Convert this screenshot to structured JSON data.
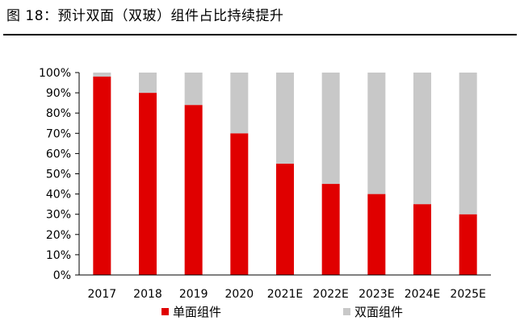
{
  "figure_title": "图 18：预计双面（双玻）组件占比持续提升",
  "chart_data": {
    "type": "bar",
    "stacked": true,
    "categories": [
      "2017",
      "2018",
      "2019",
      "2020",
      "2021E",
      "2022E",
      "2023E",
      "2024E",
      "2025E"
    ],
    "series": [
      {
        "name": "单面组件",
        "color": "#e00000",
        "values": [
          98,
          90,
          84,
          70,
          55,
          45,
          40,
          35,
          30
        ]
      },
      {
        "name": "双面组件",
        "color": "#c8c8c8",
        "values": [
          2,
          10,
          16,
          30,
          45,
          55,
          60,
          65,
          70
        ]
      }
    ],
    "ylim": [
      0,
      100
    ],
    "yticks": [
      "0%",
      "10%",
      "20%",
      "30%",
      "40%",
      "50%",
      "60%",
      "70%",
      "80%",
      "90%",
      "100%"
    ],
    "ytick_values": [
      0,
      10,
      20,
      30,
      40,
      50,
      60,
      70,
      80,
      90,
      100
    ],
    "legend_position": "bottom",
    "grid": false
  }
}
